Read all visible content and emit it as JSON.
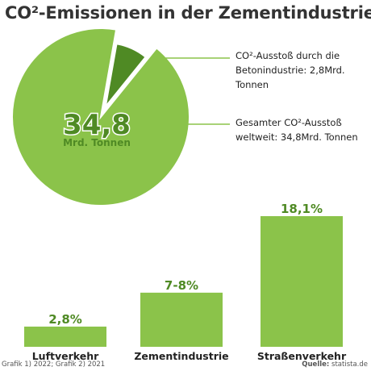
{
  "title": "CO²-Emissionen in der Zementindustrie",
  "chart_data": [
    {
      "type": "pie",
      "center_label": "34,8",
      "center_unit": "Mrd. Tonnen",
      "slices": [
        {
          "label": "CO²-Ausstoß durch die Betonindustrie: 2,8Mrd. Tonnen",
          "value": 2.8,
          "color": "#4f8a24"
        },
        {
          "label": "Gesamter CO²-Ausstoß weltweit: 34,8Mrd. Tonnen",
          "value": 32.0,
          "color": "#8bc34a"
        }
      ]
    },
    {
      "type": "bar",
      "categories": [
        "Luftverkehr",
        "Zementindustrie",
        "Straßenverkehr"
      ],
      "values": [
        2.8,
        7.5,
        18.1
      ],
      "value_labels": [
        "2,8%",
        "7-8%",
        "18,1%"
      ],
      "color": "#8bc34a",
      "label_color": "#4f8a24",
      "ylim": [
        0,
        18.1
      ]
    }
  ],
  "footnote": "Grafik 1) 2022; Grafik 2) 2021",
  "source_label": "Quelle:",
  "source_value": "statista.de"
}
